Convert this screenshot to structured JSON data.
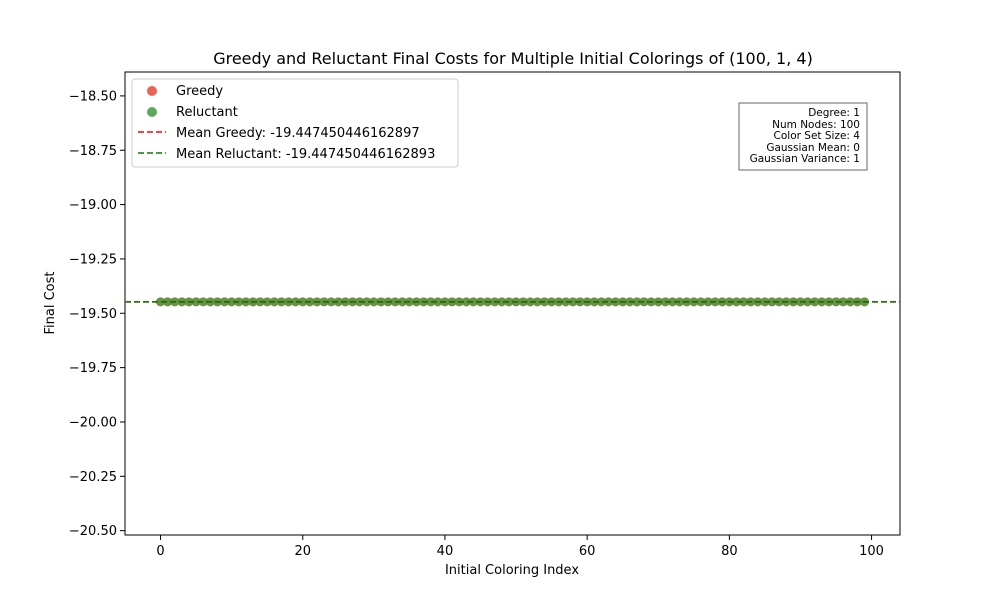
{
  "chart_data": {
    "type": "scatter",
    "title": "Greedy and Reluctant Final Costs for Multiple Initial Colorings of (100, 1, 4)",
    "xlabel": "Initial Coloring Index",
    "ylabel": "Final Cost",
    "xlim": [
      -5,
      104
    ],
    "ylim": [
      -20.52,
      -18.39
    ],
    "xticks": [
      0,
      20,
      40,
      60,
      80,
      100
    ],
    "xtick_labels": [
      "0",
      "20",
      "40",
      "60",
      "80",
      "100"
    ],
    "yticks": [
      -18.5,
      -18.75,
      -19.0,
      -19.25,
      -19.5,
      -19.75,
      -20.0,
      -20.25,
      -20.5
    ],
    "ytick_labels": [
      "−18.50",
      "−18.75",
      "−19.00",
      "−19.25",
      "−19.50",
      "−19.75",
      "−20.00",
      "−20.25",
      "−20.50"
    ],
    "grid": false,
    "legend_position": "upper-left",
    "x_range": [
      0,
      99
    ],
    "series": [
      {
        "name": "Greedy",
        "color": "#e8463c",
        "kind": "scatter",
        "y_constant": -19.447450446162897
      },
      {
        "name": "Reluctant",
        "color": "#3f9a3c",
        "kind": "scatter",
        "y_constant": -19.447450446162893
      }
    ],
    "mean_lines": [
      {
        "name": "Mean Greedy: -19.447450446162897",
        "color": "#ff0000",
        "y": -19.447450446162897,
        "style": "dashed"
      },
      {
        "name": "Mean Reluctant: -19.447450446162893",
        "color": "#008000",
        "y": -19.447450446162893,
        "style": "dashed"
      }
    ],
    "info_box": {
      "position": "upper-right",
      "lines": [
        "Degree: 1",
        "Num Nodes: 100",
        "Color Set Size: 4",
        "Gaussian Mean: 0",
        "Gaussian Variance: 1"
      ]
    }
  }
}
